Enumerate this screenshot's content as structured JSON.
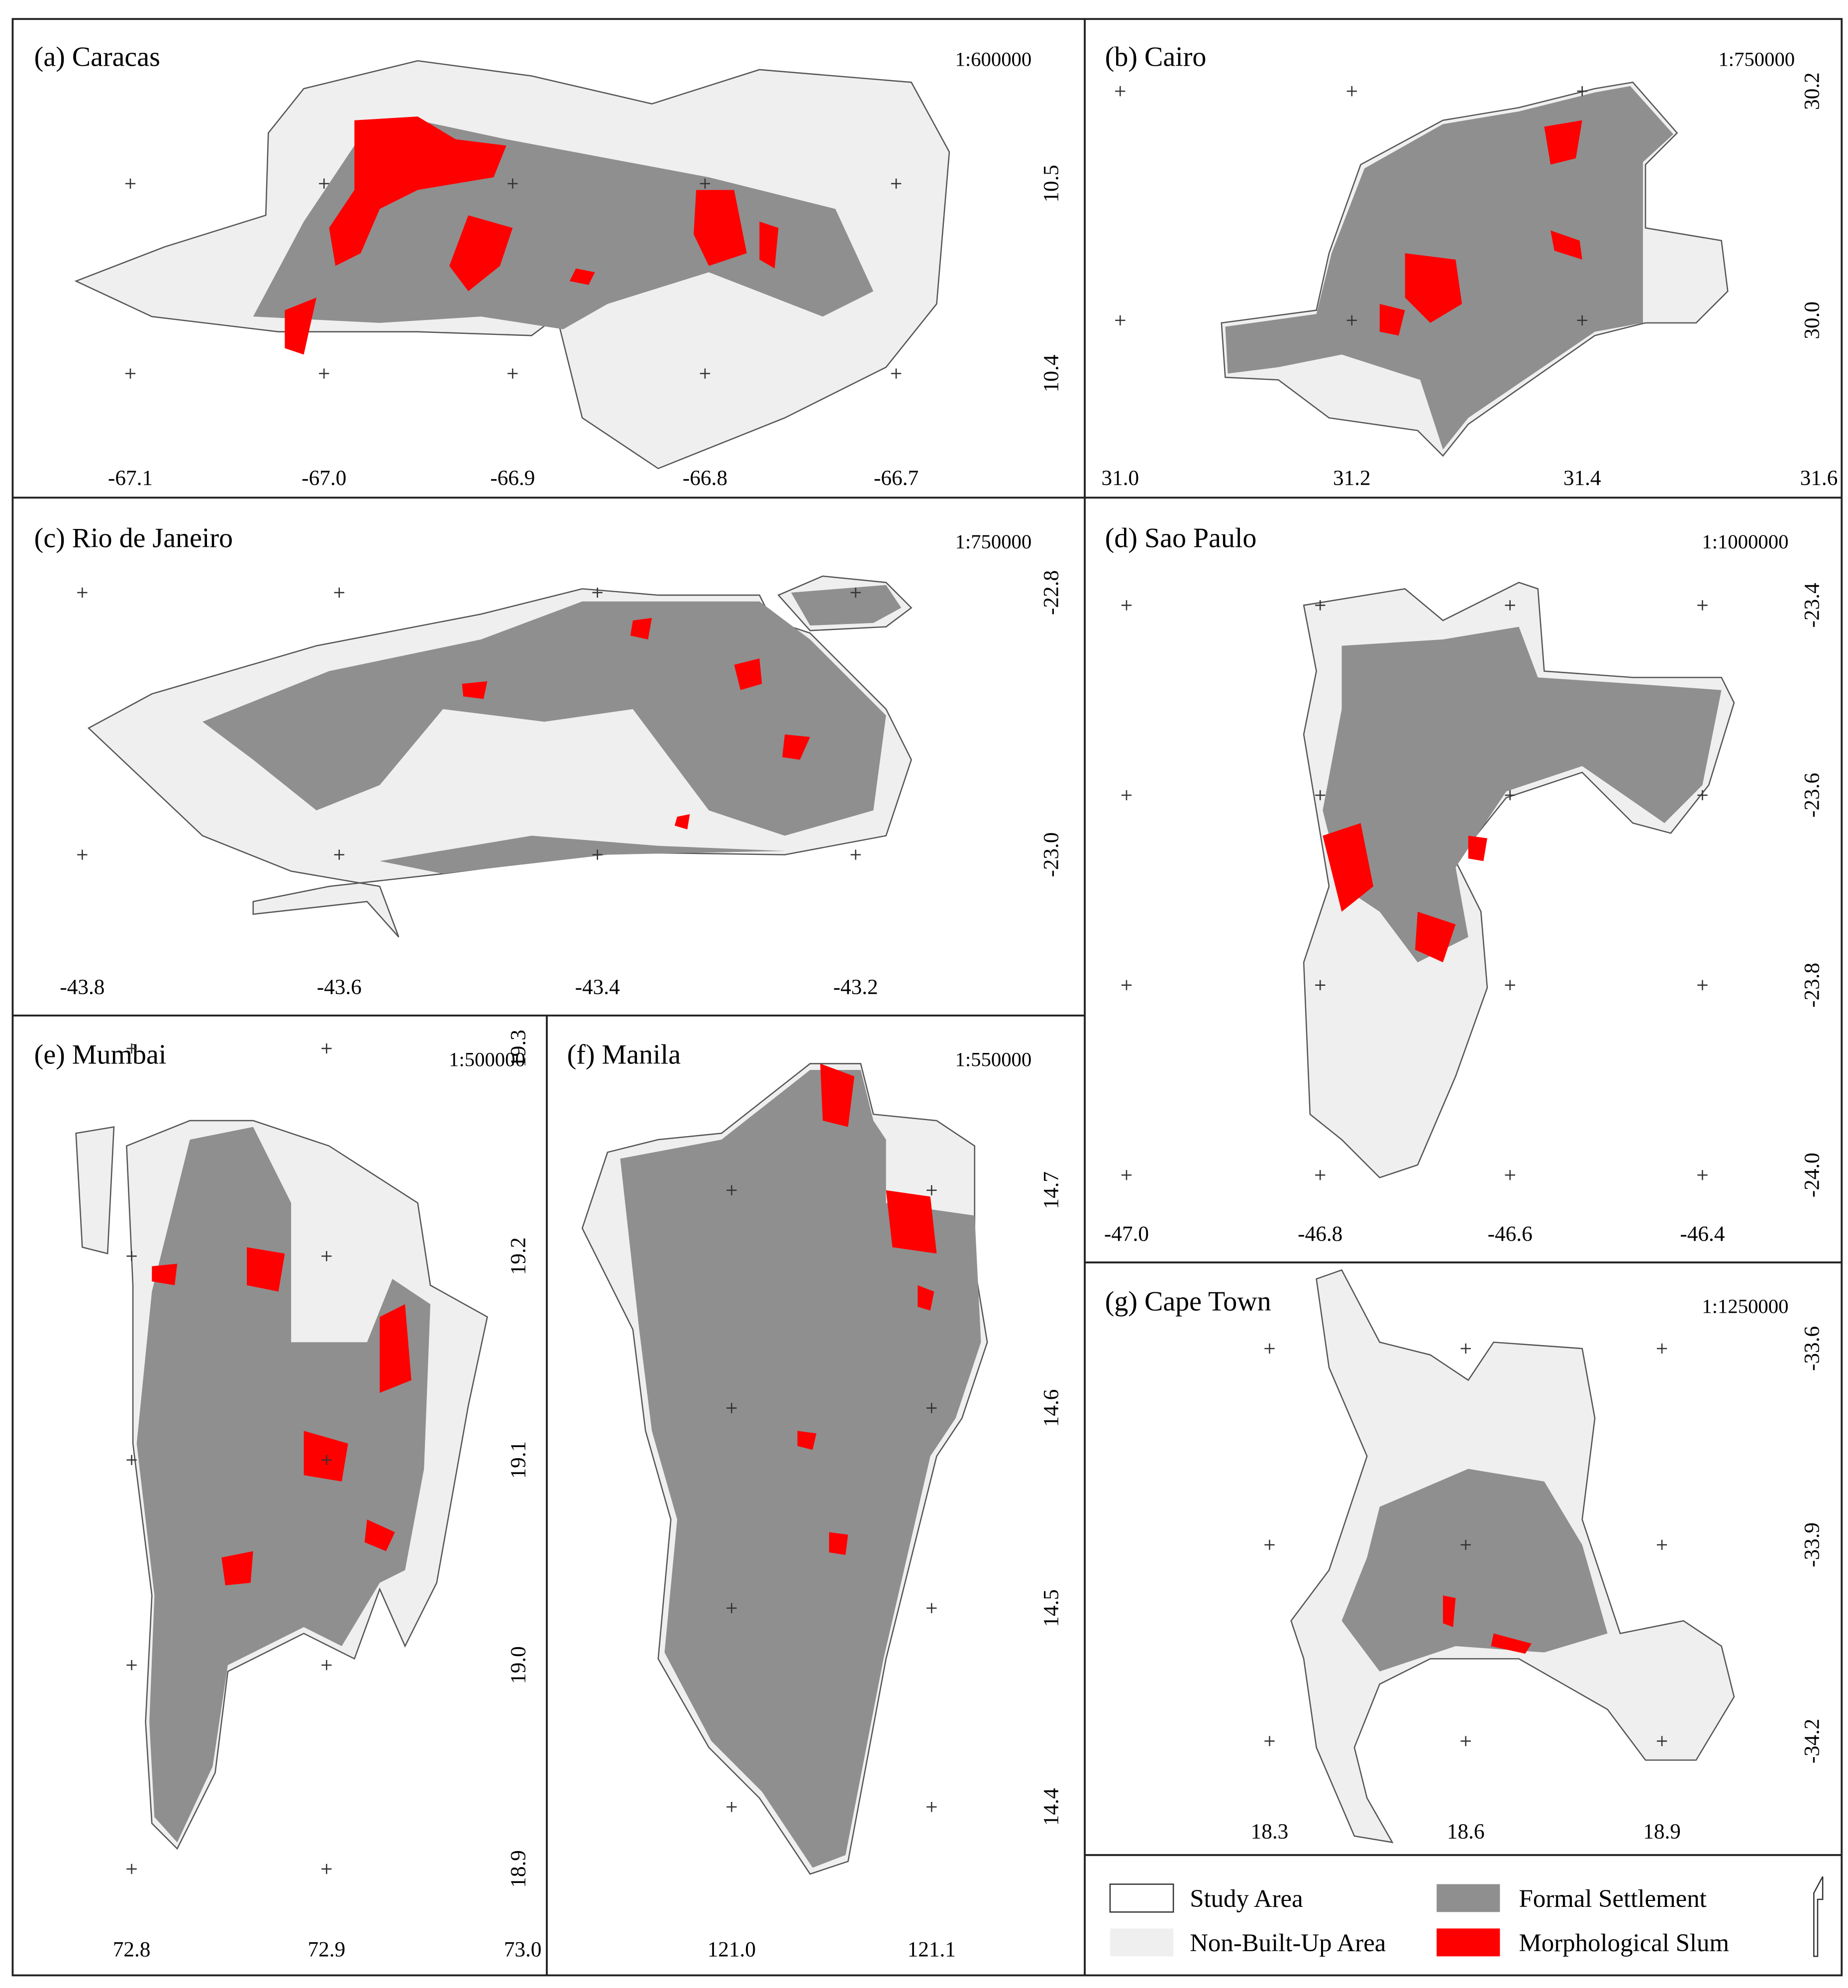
{
  "panels": [
    {
      "title": "(a) Caracas",
      "scale": "1:600000",
      "x_labels": [
        "-67.1",
        "-67.0",
        "-66.9",
        "-66.8",
        "-66.7"
      ],
      "y_labels": [
        "10.5",
        "10.4"
      ]
    },
    {
      "title": "(b) Cairo",
      "scale": "1:750000",
      "x_labels": [
        "31.0",
        "31.2",
        "31.4",
        "31.6"
      ],
      "y_labels": [
        "30.2",
        "30.0"
      ]
    },
    {
      "title": "(c) Rio de Janeiro",
      "scale": "1:750000",
      "x_labels": [
        "-43.8",
        "-43.6",
        "-43.4",
        "-43.2"
      ],
      "y_labels": [
        "-22.8",
        "-23.0"
      ]
    },
    {
      "title": "(d) Sao Paulo",
      "scale": "1:1000000",
      "x_labels": [
        "-47.0",
        "-46.8",
        "-46.6",
        "-46.4"
      ],
      "y_labels": [
        "-23.4",
        "-23.6",
        "-23.8",
        "-24.0"
      ]
    },
    {
      "title": "(e) Mumbai",
      "scale": "1:500000",
      "x_labels": [
        "72.8",
        "72.9",
        "73.0"
      ],
      "y_labels": [
        "19.3",
        "19.2",
        "19.1",
        "19.0",
        "18.9"
      ]
    },
    {
      "title": "(f) Manila",
      "scale": "1:550000",
      "x_labels": [
        "121.0",
        "121.1"
      ],
      "y_labels": [
        "14.7",
        "14.6",
        "14.5",
        "14.4"
      ]
    },
    {
      "title": "(g) Cape Town",
      "scale": "1:1250000",
      "x_labels": [
        "18.3",
        "18.6",
        "18.9"
      ],
      "y_labels": [
        "-33.6",
        "-33.9",
        "-34.2"
      ]
    }
  ],
  "legend": [
    {
      "label": "Study Area"
    },
    {
      "label": "Non-Built-Up Area"
    },
    {
      "label": "Formal Settlement"
    },
    {
      "label": "Morphological Slum"
    }
  ]
}
